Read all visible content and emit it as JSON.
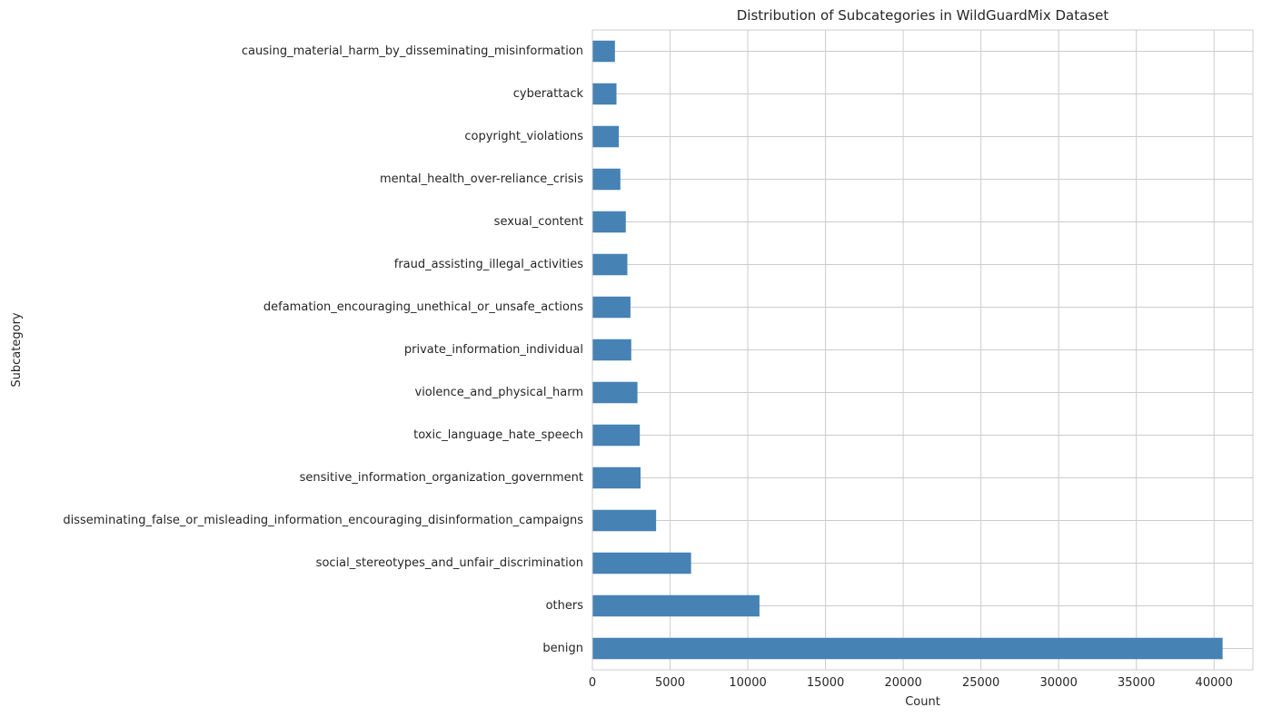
{
  "chart_data": {
    "type": "bar",
    "orientation": "horizontal",
    "title": "Distribution of Subcategories in WildGuardMix Dataset",
    "xlabel": "Count",
    "ylabel": "Subcategory",
    "xlim": [
      0,
      42500
    ],
    "xticks": [
      0,
      5000,
      10000,
      15000,
      20000,
      25000,
      30000,
      35000,
      40000
    ],
    "grid": true,
    "legend": "none",
    "bar_color": "#4682b4",
    "categories": [
      "causing_material_harm_by_disseminating_misinformation",
      "cyberattack",
      "copyright_violations",
      "mental_health_over-reliance_crisis",
      "sexual_content",
      "fraud_assisting_illegal_activities",
      "defamation_encouraging_unethical_or_unsafe_actions",
      "private_information_individual",
      "violence_and_physical_harm",
      "toxic_language_hate_speech",
      "sensitive_information_organization_government",
      "disseminating_false_or_misleading_information_encouraging_disinformation_campaigns",
      "social_stereotypes_and_unfair_discrimination",
      "others",
      "benign"
    ],
    "values": [
      1450,
      1550,
      1700,
      1800,
      2150,
      2250,
      2450,
      2500,
      2900,
      3050,
      3100,
      4100,
      6350,
      10750,
      40550
    ]
  }
}
